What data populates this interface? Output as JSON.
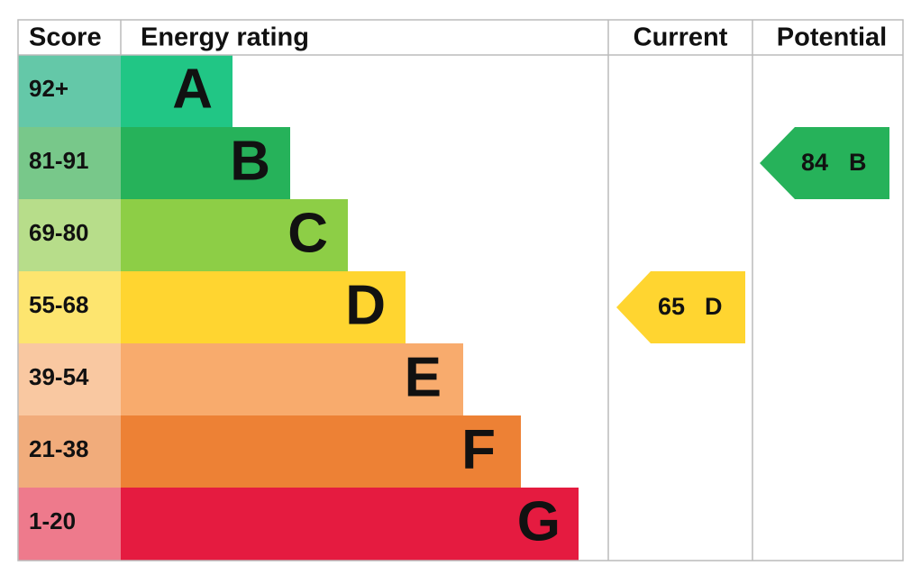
{
  "header": {
    "score": "Score",
    "rating": "Energy rating",
    "current": "Current",
    "potential": "Potential"
  },
  "bands": [
    {
      "score": "92+",
      "letter": "A"
    },
    {
      "score": "81-91",
      "letter": "B"
    },
    {
      "score": "69-80",
      "letter": "C"
    },
    {
      "score": "55-68",
      "letter": "D"
    },
    {
      "score": "39-54",
      "letter": "E"
    },
    {
      "score": "21-38",
      "letter": "F"
    },
    {
      "score": "1-20",
      "letter": "G"
    }
  ],
  "current": {
    "score": "65",
    "letter": "D"
  },
  "potential": {
    "score": "84",
    "letter": "B"
  }
}
